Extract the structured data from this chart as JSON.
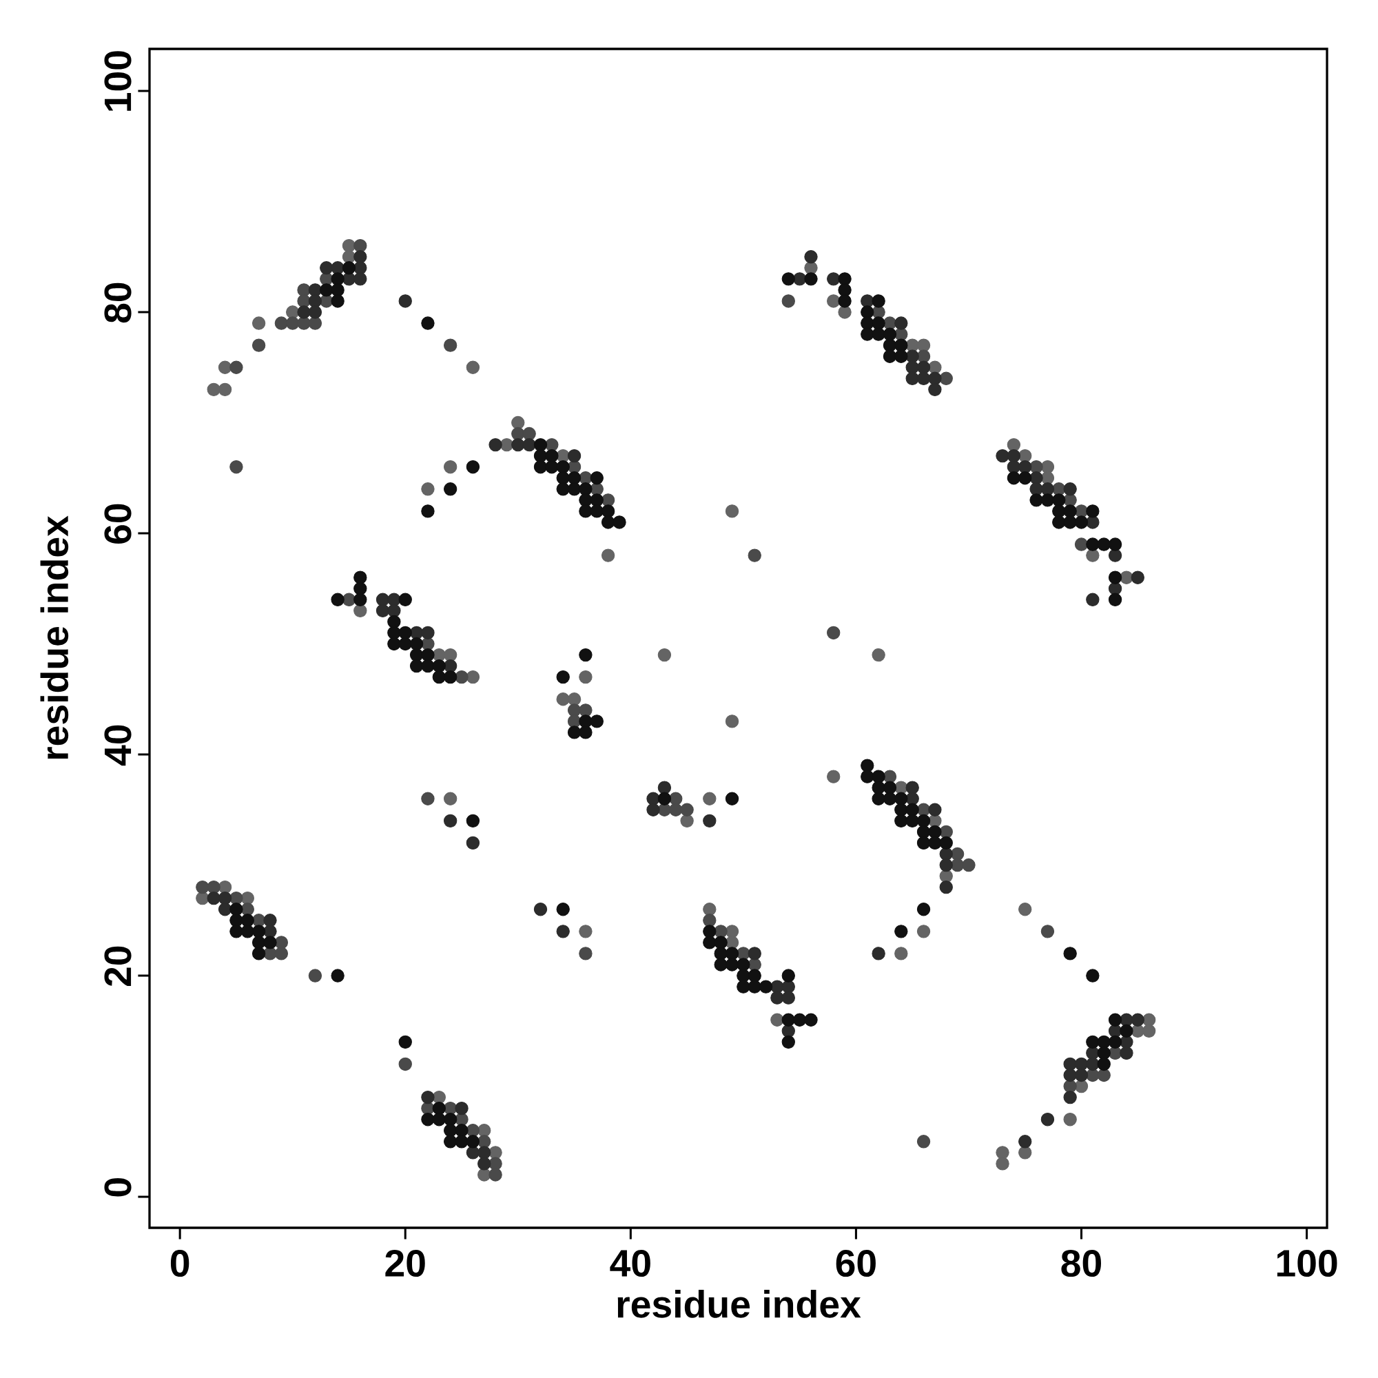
{
  "chart_data": {
    "type": "scatter",
    "xlabel": "residue index",
    "ylabel": "residue index",
    "xlim": [
      -2.7,
      101.8
    ],
    "ylim": [
      -2.8,
      103.8
    ],
    "xticks": [
      0,
      20,
      40,
      60,
      80,
      100
    ],
    "yticks": [
      0,
      20,
      40,
      60,
      80,
      100
    ],
    "marker": "circle",
    "x": [
      15,
      16,
      15,
      16,
      13,
      14,
      15,
      16,
      13,
      14,
      15,
      16,
      11,
      12,
      13,
      14,
      11,
      12,
      13,
      14,
      10,
      11,
      12,
      7,
      9,
      10,
      11,
      12,
      7,
      4,
      5,
      3,
      4,
      20,
      22,
      24,
      26,
      5,
      24,
      26,
      22,
      24,
      22,
      30,
      30,
      31,
      28,
      29,
      30,
      31,
      32,
      33,
      32,
      33,
      34,
      35,
      32,
      33,
      34,
      35,
      34,
      35,
      36,
      37,
      34,
      35,
      36,
      37,
      36,
      37,
      38,
      36,
      37,
      38,
      38,
      39,
      38,
      51,
      49,
      58,
      43,
      62,
      49,
      58,
      16,
      16,
      14,
      15,
      16,
      18,
      19,
      20,
      16,
      18,
      19,
      19,
      19,
      20,
      21,
      22,
      19,
      20,
      21,
      22,
      21,
      22,
      23,
      24,
      21,
      22,
      23,
      24,
      23,
      24,
      25,
      26,
      36,
      34,
      36,
      34,
      35,
      35,
      36,
      35,
      36,
      37,
      35,
      36,
      43,
      42,
      43,
      44,
      47,
      49,
      42,
      43,
      44,
      45,
      45,
      47,
      61,
      61,
      62,
      63,
      62,
      63,
      64,
      65,
      62,
      63,
      64,
      65,
      64,
      65,
      66,
      67,
      64,
      65,
      66,
      67,
      66,
      67,
      68,
      66,
      67,
      68,
      68,
      69,
      68,
      69,
      70,
      68,
      68,
      66,
      64,
      66,
      62,
      64,
      22,
      24,
      24,
      26,
      26,
      32,
      34,
      34,
      36,
      36,
      47,
      47,
      47,
      48,
      49,
      47,
      48,
      49,
      48,
      49,
      50,
      51,
      48,
      49,
      50,
      51,
      50,
      51,
      54,
      50,
      51,
      52,
      53,
      54,
      53,
      54,
      53,
      54,
      55,
      56,
      54,
      54,
      56,
      56,
      54,
      55,
      56,
      58,
      59,
      59,
      54,
      58,
      59,
      59,
      61,
      62,
      61,
      62,
      61,
      62,
      63,
      64,
      61,
      62,
      63,
      64,
      63,
      64,
      65,
      66,
      63,
      64,
      65,
      66,
      65,
      66,
      67,
      65,
      66,
      67,
      68,
      67,
      74,
      73,
      74,
      75,
      74,
      75,
      76,
      77,
      74,
      75,
      76,
      77,
      76,
      77,
      78,
      79,
      76,
      77,
      78,
      79,
      78,
      79,
      80,
      81,
      78,
      79,
      80,
      81,
      80,
      81,
      82,
      83,
      81,
      83,
      83,
      84,
      85,
      83,
      81,
      83,
      75,
      77,
      79,
      81,
      83,
      84,
      85,
      86,
      83,
      84,
      85,
      86,
      81,
      82,
      83,
      84,
      81,
      82,
      83,
      84,
      79,
      80,
      81,
      82,
      79,
      80,
      81,
      82,
      79,
      80,
      79,
      77,
      79,
      75,
      73,
      75,
      73,
      66,
      2,
      3,
      4,
      2,
      3,
      4,
      5,
      6,
      4,
      5,
      6,
      5,
      6,
      7,
      8,
      5,
      6,
      7,
      8,
      7,
      8,
      9,
      7,
      8,
      9,
      12,
      14,
      20,
      20,
      22,
      23,
      22,
      23,
      24,
      25,
      22,
      23,
      24,
      25,
      24,
      25,
      26,
      27,
      24,
      25,
      26,
      27,
      26,
      27,
      28,
      27,
      28,
      27,
      28
    ],
    "values": [
      86,
      86,
      85,
      85,
      84,
      84,
      84,
      84,
      83,
      83,
      83,
      83,
      82,
      82,
      82,
      82,
      81,
      81,
      81,
      81,
      80,
      80,
      80,
      79,
      79,
      79,
      79,
      79,
      77,
      75,
      75,
      73,
      73,
      81,
      79,
      77,
      75,
      66,
      66,
      66,
      64,
      64,
      62,
      70,
      69,
      69,
      68,
      68,
      68,
      68,
      68,
      68,
      67,
      67,
      67,
      67,
      66,
      66,
      66,
      66,
      65,
      65,
      65,
      65,
      64,
      64,
      64,
      64,
      63,
      63,
      63,
      62,
      62,
      62,
      61,
      61,
      58,
      58,
      62,
      51,
      49,
      49,
      43,
      38,
      56,
      55,
      54,
      54,
      54,
      54,
      54,
      54,
      53,
      53,
      53,
      52,
      51,
      51,
      51,
      51,
      50,
      50,
      50,
      50,
      49,
      49,
      49,
      49,
      48,
      48,
      48,
      48,
      47,
      47,
      47,
      47,
      49,
      47,
      47,
      45,
      45,
      44,
      44,
      43,
      43,
      43,
      42,
      42,
      37,
      36,
      36,
      36,
      36,
      36,
      35,
      35,
      35,
      35,
      34,
      34,
      39,
      38,
      38,
      38,
      37,
      37,
      37,
      37,
      36,
      36,
      36,
      36,
      35,
      35,
      35,
      35,
      34,
      34,
      34,
      34,
      33,
      33,
      33,
      32,
      32,
      32,
      31,
      31,
      30,
      30,
      30,
      29,
      28,
      26,
      24,
      24,
      22,
      22,
      36,
      36,
      34,
      34,
      32,
      26,
      26,
      24,
      24,
      22,
      26,
      25,
      24,
      24,
      24,
      23,
      23,
      23,
      22,
      22,
      22,
      22,
      21,
      21,
      21,
      21,
      20,
      20,
      20,
      19,
      19,
      19,
      19,
      19,
      18,
      18,
      16,
      16,
      16,
      16,
      15,
      14,
      85,
      84,
      83,
      83,
      83,
      83,
      83,
      82,
      81,
      81,
      81,
      80,
      81,
      81,
      80,
      80,
      79,
      79,
      79,
      79,
      78,
      78,
      78,
      78,
      77,
      77,
      77,
      77,
      76,
      76,
      76,
      76,
      75,
      75,
      75,
      74,
      74,
      74,
      74,
      73,
      68,
      67,
      67,
      67,
      66,
      66,
      66,
      66,
      65,
      65,
      65,
      65,
      64,
      64,
      64,
      64,
      63,
      63,
      63,
      63,
      62,
      62,
      62,
      62,
      61,
      61,
      61,
      61,
      59,
      59,
      59,
      59,
      58,
      58,
      56,
      56,
      56,
      55,
      54,
      54,
      26,
      24,
      22,
      20,
      16,
      16,
      16,
      16,
      15,
      15,
      15,
      15,
      14,
      14,
      14,
      14,
      13,
      13,
      13,
      13,
      12,
      12,
      12,
      12,
      11,
      11,
      11,
      11,
      10,
      10,
      9,
      7,
      7,
      5,
      4,
      4,
      3,
      5,
      28,
      28,
      28,
      27,
      27,
      27,
      27,
      27,
      26,
      26,
      26,
      25,
      25,
      25,
      25,
      24,
      24,
      24,
      24,
      23,
      23,
      23,
      22,
      22,
      22,
      20,
      20,
      14,
      12,
      9,
      9,
      8,
      8,
      8,
      8,
      7,
      7,
      7,
      7,
      6,
      6,
      6,
      6,
      5,
      5,
      5,
      5,
      4,
      4,
      4,
      3,
      3,
      2,
      2
    ],
    "colors": [
      "#646464",
      "#4a4a4a",
      "#646464",
      "#2c2c2c",
      "#2c2c2c",
      "#2c2c2c",
      "#111111",
      "#2c2c2c",
      "#4a4a4a",
      "#111111",
      "#2c2c2c",
      "#2c2c2c",
      "#4a4a4a",
      "#2c2c2c",
      "#111111",
      "#111111",
      "#4a4a4a",
      "#2c2c2c",
      "#4a4a4a",
      "#111111",
      "#646464",
      "#2c2c2c",
      "#2c2c2c",
      "#646464",
      "#4a4a4a",
      "#4a4a4a",
      "#4a4a4a",
      "#4a4a4a",
      "#4a4a4a",
      "#646464",
      "#4a4a4a",
      "#646464",
      "#646464",
      "#2c2c2c",
      "#111111",
      "#4a4a4a",
      "#646464",
      "#4a4a4a",
      "#646464",
      "#111111",
      "#646464",
      "#111111",
      "#111111",
      "#646464",
      "#4a4a4a",
      "#4a4a4a",
      "#2c2c2c",
      "#646464",
      "#2c2c2c",
      "#2c2c2c",
      "#111111",
      "#4a4a4a",
      "#111111",
      "#111111",
      "#646464",
      "#2c2c2c",
      "#111111",
      "#111111",
      "#111111",
      "#4a4a4a",
      "#111111",
      "#111111",
      "#4a4a4a",
      "#111111",
      "#111111",
      "#111111",
      "#111111",
      "#4a4a4a",
      "#111111",
      "#111111",
      "#4a4a4a",
      "#111111",
      "#111111",
      "#111111",
      "#111111",
      "#111111",
      "#646464",
      "#4a4a4a",
      "#646464",
      "#4a4a4a",
      "#646464",
      "#646464",
      "#646464",
      "#646464",
      "#111111",
      "#111111",
      "#111111",
      "#4a4a4a",
      "#111111",
      "#2c2c2c",
      "#2c2c2c",
      "#111111",
      "#646464",
      "#2c2c2c",
      "#2c2c2c",
      "#111111",
      "#111111",
      "#111111",
      "#2c2c2c",
      "#2c2c2c",
      "#111111",
      "#111111",
      "#111111",
      "#4a4a4a",
      "#111111",
      "#111111",
      "#646464",
      "#646464",
      "#111111",
      "#111111",
      "#111111",
      "#2c2c2c",
      "#111111",
      "#111111",
      "#4a4a4a",
      "#646464",
      "#111111",
      "#111111",
      "#646464",
      "#646464",
      "#646464",
      "#4a4a4a",
      "#4a4a4a",
      "#4a4a4a",
      "#111111",
      "#111111",
      "#111111",
      "#111111",
      "#2c2c2c",
      "#2c2c2c",
      "#111111",
      "#4a4a4a",
      "#646464",
      "#111111",
      "#2c2c2c",
      "#4a4a4a",
      "#4a4a4a",
      "#4a4a4a",
      "#646464",
      "#2c2c2c",
      "#111111",
      "#111111",
      "#111111",
      "#4a4a4a",
      "#111111",
      "#111111",
      "#646464",
      "#2c2c2c",
      "#111111",
      "#111111",
      "#111111",
      "#2c2c2c",
      "#111111",
      "#111111",
      "#4a4a4a",
      "#2c2c2c",
      "#111111",
      "#111111",
      "#111111",
      "#646464",
      "#111111",
      "#111111",
      "#4a4a4a",
      "#111111",
      "#111111",
      "#111111",
      "#2c2c2c",
      "#4a4a4a",
      "#2c2c2c",
      "#4a4a4a",
      "#4a4a4a",
      "#646464",
      "#2c2c2c",
      "#111111",
      "#111111",
      "#646464",
      "#2c2c2c",
      "#646464",
      "#4a4a4a",
      "#646464",
      "#2c2c2c",
      "#111111",
      "#2c2c2c",
      "#2c2c2c",
      "#111111",
      "#2c2c2c",
      "#646464",
      "#4a4a4a",
      "#646464",
      "#4a4a4a",
      "#111111",
      "#4a4a4a",
      "#646464",
      "#111111",
      "#111111",
      "#646464",
      "#111111",
      "#111111",
      "#4a4a4a",
      "#2c2c2c",
      "#111111",
      "#111111",
      "#111111",
      "#4a4a4a",
      "#111111",
      "#111111",
      "#111111",
      "#111111",
      "#111111",
      "#111111",
      "#2c2c2c",
      "#2c2c2c",
      "#2c2c2c",
      "#2c2c2c",
      "#646464",
      "#111111",
      "#111111",
      "#111111",
      "#2c2c2c",
      "#111111",
      "#2c2c2c",
      "#646464",
      "#111111",
      "#2c2c2c",
      "#111111",
      "#2c2c2c",
      "#111111",
      "#111111",
      "#4a4a4a",
      "#646464",
      "#111111",
      "#646464",
      "#2c2c2c",
      "#111111",
      "#111111",
      "#4a4a4a",
      "#111111",
      "#111111",
      "#4a4a4a",
      "#2c2c2c",
      "#111111",
      "#111111",
      "#111111",
      "#4a4a4a",
      "#111111",
      "#111111",
      "#646464",
      "#646464",
      "#111111",
      "#111111",
      "#2c2c2c",
      "#4a4a4a",
      "#2c2c2c",
      "#2c2c2c",
      "#646464",
      "#2c2c2c",
      "#2c2c2c",
      "#2c2c2c",
      "#4a4a4a",
      "#2c2c2c",
      "#646464",
      "#2c2c2c",
      "#2c2c2c",
      "#646464",
      "#2c2c2c",
      "#2c2c2c",
      "#4a4a4a",
      "#646464",
      "#111111",
      "#111111",
      "#2c2c2c",
      "#646464",
      "#2c2c2c",
      "#2c2c2c",
      "#4a4a4a",
      "#2c2c2c",
      "#111111",
      "#111111",
      "#111111",
      "#4a4a4a",
      "#111111",
      "#111111",
      "#4a4a4a",
      "#111111",
      "#111111",
      "#111111",
      "#111111",
      "#2c2c2c",
      "#4a4a4a",
      "#111111",
      "#111111",
      "#111111",
      "#646464",
      "#2c2c2c",
      "#111111",
      "#646464",
      "#2c2c2c",
      "#2c2c2c",
      "#2c2c2c",
      "#111111",
      "#646464",
      "#4a4a4a",
      "#111111",
      "#111111",
      "#111111",
      "#2c2c2c",
      "#2c2c2c",
      "#646464",
      "#2c2c2c",
      "#111111",
      "#646464",
      "#646464",
      "#111111",
      "#111111",
      "#111111",
      "#2c2c2c",
      "#2c2c2c",
      "#111111",
      "#4a4a4a",
      "#2c2c2c",
      "#2c2c2c",
      "#2c2c2c",
      "#2c2c2c",
      "#111111",
      "#2c2c2c",
      "#2c2c2c",
      "#4a4a4a",
      "#4a4a4a",
      "#4a4a4a",
      "#646464",
      "#2c2c2c",
      "#2c2c2c",
      "#646464",
      "#2c2c2c",
      "#646464",
      "#646464",
      "#646464",
      "#4a4a4a",
      "#4a4a4a",
      "#4a4a4a",
      "#646464",
      "#646464",
      "#2c2c2c",
      "#2c2c2c",
      "#4a4a4a",
      "#646464",
      "#2c2c2c",
      "#111111",
      "#4a4a4a",
      "#111111",
      "#111111",
      "#4a4a4a",
      "#2c2c2c",
      "#111111",
      "#111111",
      "#111111",
      "#2c2c2c",
      "#111111",
      "#111111",
      "#4a4a4a",
      "#111111",
      "#4a4a4a",
      "#4a4a4a",
      "#4a4a4a",
      "#111111",
      "#111111",
      "#4a4a4a",
      "#2c2c2c",
      "#646464",
      "#4a4a4a",
      "#111111",
      "#4a4a4a",
      "#2c2c2c",
      "#111111",
      "#111111",
      "#111111",
      "#4a4a4a",
      "#111111",
      "#111111",
      "#4a4a4a",
      "#646464",
      "#111111",
      "#111111",
      "#111111",
      "#4a4a4a",
      "#2c2c2c",
      "#2c2c2c",
      "#646464",
      "#2c2c2c",
      "#4a4a4a",
      "#646464",
      "#4a4a4a"
    ]
  }
}
